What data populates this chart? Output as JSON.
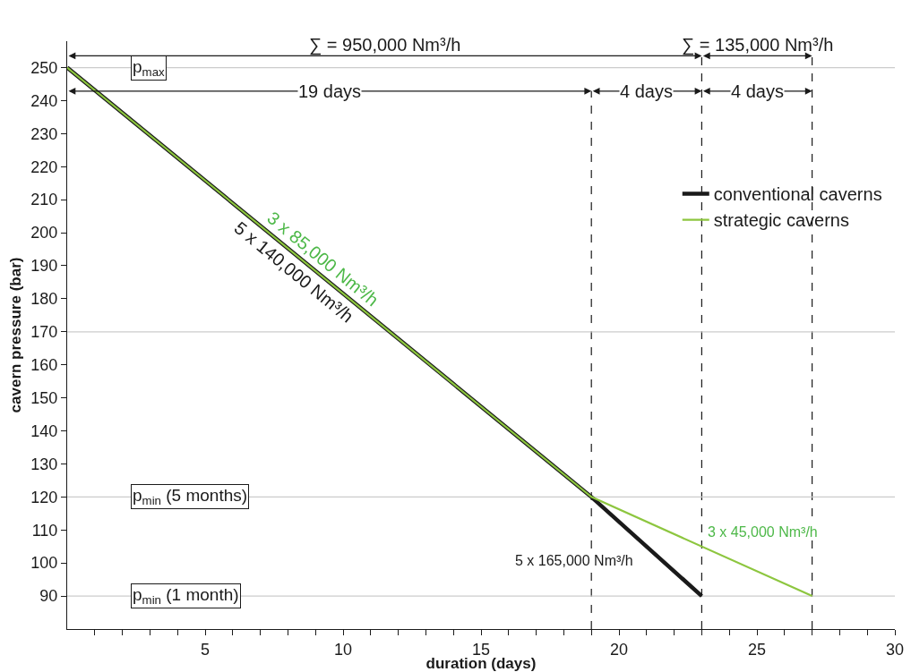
{
  "chart_data": {
    "type": "line",
    "xlabel": "duration (days)",
    "ylabel": "cavern pressure (bar)",
    "x": [
      0,
      19,
      23
    ],
    "series": [
      {
        "name": "conventional caverns",
        "color": "#1a1a1a",
        "values": [
          250,
          120,
          90
        ]
      },
      {
        "name": "strategic caverns",
        "color": "#8dc63f",
        "x": [
          0,
          19,
          27
        ],
        "values": [
          250,
          120,
          90
        ]
      }
    ],
    "xlim": [
      0,
      30
    ],
    "ylim": [
      80,
      258
    ],
    "xticks": [
      {
        "value": 1,
        "label": null
      },
      {
        "value": 2,
        "label": null
      },
      {
        "value": 3,
        "label": null
      },
      {
        "value": 4,
        "label": null
      },
      5,
      {
        "value": 6,
        "label": null
      },
      {
        "value": 7,
        "label": null
      },
      {
        "value": 8,
        "label": null
      },
      {
        "value": 9,
        "label": null
      },
      10,
      {
        "value": 11,
        "label": null
      },
      {
        "value": 12,
        "label": null
      },
      {
        "value": 13,
        "label": null
      },
      {
        "value": 14,
        "label": null
      },
      15,
      {
        "value": 16,
        "label": null
      },
      {
        "value": 17,
        "label": null
      },
      {
        "value": 18,
        "label": null
      },
      {
        "value": 19,
        "label": null
      },
      20,
      {
        "value": 21,
        "label": null
      },
      {
        "value": 22,
        "label": null
      },
      {
        "value": 23,
        "label": null
      },
      {
        "value": 24,
        "label": null
      },
      25,
      {
        "value": 26,
        "label": null
      },
      {
        "value": 27,
        "label": null
      },
      {
        "value": 28,
        "label": null
      },
      {
        "value": 29,
        "label": null
      },
      30
    ],
    "yticks": [
      90,
      100,
      110,
      120,
      130,
      140,
      150,
      160,
      170,
      180,
      190,
      200,
      210,
      220,
      230,
      240,
      250
    ],
    "grid": false,
    "legend": "top right",
    "marker": "none",
    "line_style": "solid",
    "ref_lines": [
      {
        "axis": "x",
        "value": 19,
        "color": "#1a1a1a",
        "line_style": "dashed"
      },
      {
        "axis": "x",
        "value": 23,
        "color": "#1a1a1a",
        "line_style": "dashed"
      },
      {
        "axis": "x",
        "value": 27,
        "color": "#1a1a1a",
        "line_style": "dashed"
      },
      {
        "axis": "y",
        "value": 250,
        "color": "#cccccc",
        "label": "p$_{max}$"
      },
      {
        "axis": "y",
        "value": 170,
        "color": "#cccccc"
      },
      {
        "axis": "y",
        "value": 120,
        "color": "#cccccc",
        "label": "p$_{min}$ (5 months)"
      },
      {
        "axis": "y",
        "value": 90,
        "color": "#cccccc",
        "label": "p$_{min}$ (1 month)"
      }
    ],
    "annotations": [
      "∑ = 950,000 Nm³/h",
      "∑ = 135,000 Nm³/h",
      "19 days",
      "4 days",
      "4 days",
      "3 x 85,000 Nm³/h",
      "5 x 140,000 Nm³/h",
      "5 x 165,000 Nm³/h",
      "3 x 45,000 Nm³/h"
    ]
  }
}
